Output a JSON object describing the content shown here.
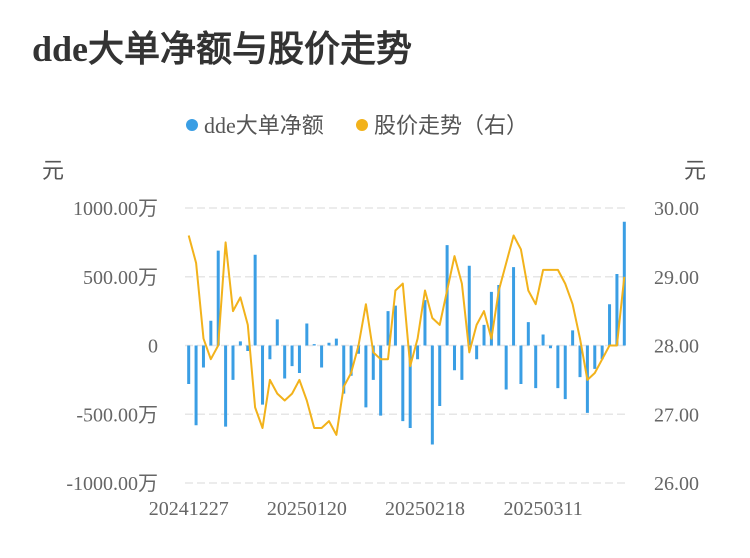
{
  "title": "dde大单净额与股价走势",
  "chart_data": {
    "type": "bar+line",
    "legend": [
      "dde大单净额",
      "股价走势（右）"
    ],
    "colors": {
      "bar": "#3a9ee4",
      "line": "#f2b21b",
      "grid": "#e6e6e6",
      "text": "#666666"
    },
    "left_unit": "元",
    "right_unit": "元",
    "left_ticks": [
      "1000.00万",
      "500.00万",
      "0",
      "-500.00万",
      "-1000.00万"
    ],
    "right_ticks": [
      "30.00",
      "29.00",
      "28.00",
      "27.00",
      "26.00"
    ],
    "ylim_left": [
      -1000,
      1000
    ],
    "ylim_right": [
      26,
      30
    ],
    "x_labels": [
      "20241227",
      "20250120",
      "20250218",
      "20250311"
    ],
    "x_label_index": [
      0,
      16,
      32,
      48
    ],
    "dde_values": [
      -280,
      -580,
      -160,
      180,
      690,
      -590,
      -250,
      30,
      -40,
      660,
      -430,
      -100,
      190,
      -240,
      -150,
      -200,
      160,
      10,
      -160,
      20,
      50,
      -350,
      -220,
      -60,
      -450,
      -250,
      -510,
      250,
      290,
      -550,
      -600,
      -100,
      330,
      -720,
      -440,
      730,
      -180,
      -250,
      580,
      -100,
      150,
      390,
      440,
      -320,
      570,
      -280,
      170,
      -310,
      80,
      -20,
      -310,
      -390,
      110,
      -230,
      -490,
      -170,
      -100,
      300,
      520,
      900
    ],
    "price_values": [
      29.6,
      29.2,
      28.1,
      27.8,
      28.0,
      29.5,
      28.5,
      28.7,
      28.3,
      27.1,
      26.8,
      27.5,
      27.3,
      27.2,
      27.3,
      27.5,
      27.2,
      26.8,
      26.8,
      26.9,
      26.7,
      27.4,
      27.6,
      28.0,
      28.6,
      27.9,
      27.8,
      27.8,
      28.8,
      28.9,
      27.7,
      28.1,
      28.8,
      28.4,
      28.3,
      28.8,
      29.3,
      28.9,
      27.9,
      28.3,
      28.5,
      28.1,
      28.8,
      29.2,
      29.6,
      29.4,
      28.8,
      28.6,
      29.1,
      29.1,
      29.1,
      28.9,
      28.6,
      28.1,
      27.5,
      27.6,
      27.8,
      28.0,
      28.0,
      29.0
    ]
  }
}
